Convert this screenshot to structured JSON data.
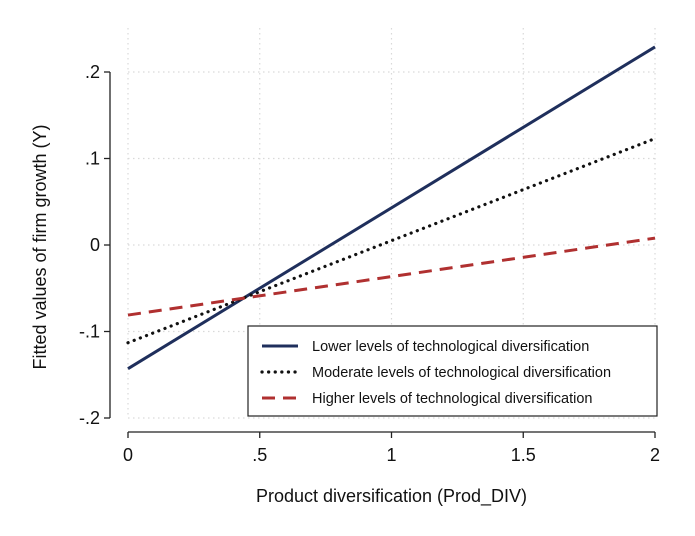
{
  "chart_data": {
    "type": "line",
    "xlabel": "Product diversification (Prod_DIV)",
    "ylabel": "Fitted values of firm growth (Y)",
    "xlim": [
      0,
      2
    ],
    "ylim": [
      -0.2,
      0.2
    ],
    "x_ticks": [
      0,
      0.5,
      1,
      1.5,
      2
    ],
    "x_tick_labels": [
      "0",
      ".5",
      "1",
      "1.5",
      "2"
    ],
    "y_ticks": [
      -0.2,
      -0.1,
      0,
      0.1,
      0.2
    ],
    "y_tick_labels": [
      "-.2",
      "-.1",
      "0",
      ".1",
      ".2"
    ],
    "grid": true,
    "legend_position": "bottom-right",
    "series": [
      {
        "name": "Lower levels of technological diversification",
        "x": [
          0,
          2
        ],
        "y": [
          -0.143,
          0.229
        ],
        "color": "#1f2f5c",
        "style": "solid"
      },
      {
        "name": "Moderate levels of technological diversification",
        "x": [
          0,
          2
        ],
        "y": [
          -0.113,
          0.123
        ],
        "color": "#111111",
        "style": "dotted"
      },
      {
        "name": "Higher levels of technological diversification",
        "x": [
          0,
          2
        ],
        "y": [
          -0.081,
          0.008
        ],
        "color": "#b03030",
        "style": "dashed"
      }
    ]
  }
}
